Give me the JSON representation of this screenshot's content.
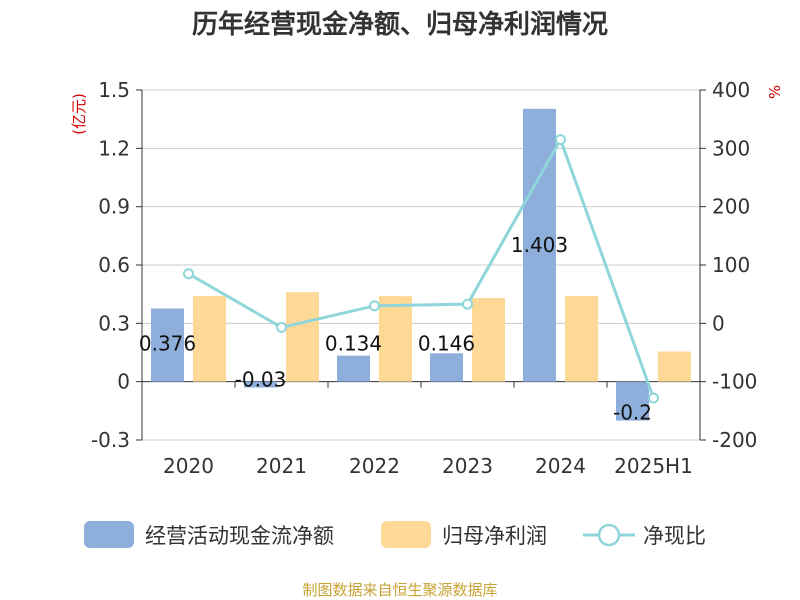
{
  "chart_data": {
    "type": "bar+line",
    "title": "历年经营现金净额、归母净利润情况",
    "categories": [
      "2020",
      "2021",
      "2022",
      "2023",
      "2024",
      "2025H1"
    ],
    "left_axis": {
      "unit": "(亿元)",
      "ylim": [
        -0.3,
        1.5
      ],
      "ticks": [
        "1.5",
        "1.2",
        "0.9",
        "0.6",
        "0.3",
        "0",
        "-0.3"
      ],
      "tick_values": [
        1.5,
        1.2,
        0.9,
        0.6,
        0.3,
        0,
        -0.3
      ]
    },
    "right_axis": {
      "unit": "%",
      "ylim": [
        -200,
        400
      ],
      "ticks": [
        "400",
        "300",
        "200",
        "100",
        "0",
        "-100",
        "-200"
      ],
      "tick_values": [
        400,
        300,
        200,
        100,
        0,
        -100,
        -200
      ]
    },
    "series": [
      {
        "name": "经营活动现金流净额",
        "kind": "bar",
        "axis": "left",
        "color": "#8eaedb",
        "values": [
          0.376,
          -0.03,
          0.134,
          0.146,
          1.403,
          -0.2
        ],
        "labels": [
          "0.376",
          "-0.03",
          "0.134",
          "0.146",
          "1.403",
          "-0.2"
        ]
      },
      {
        "name": "归母净利润",
        "kind": "bar",
        "axis": "left",
        "color": "#fed895",
        "values": [
          0.44,
          0.46,
          0.44,
          0.43,
          0.44,
          0.155
        ]
      },
      {
        "name": "净现比",
        "kind": "line",
        "axis": "right",
        "color": "#8ed6da",
        "values": [
          85,
          -7,
          30,
          33,
          315,
          -128
        ]
      }
    ],
    "grid": true,
    "legend_position": "bottom"
  },
  "source": "制图数据来自恒生聚源数据库"
}
